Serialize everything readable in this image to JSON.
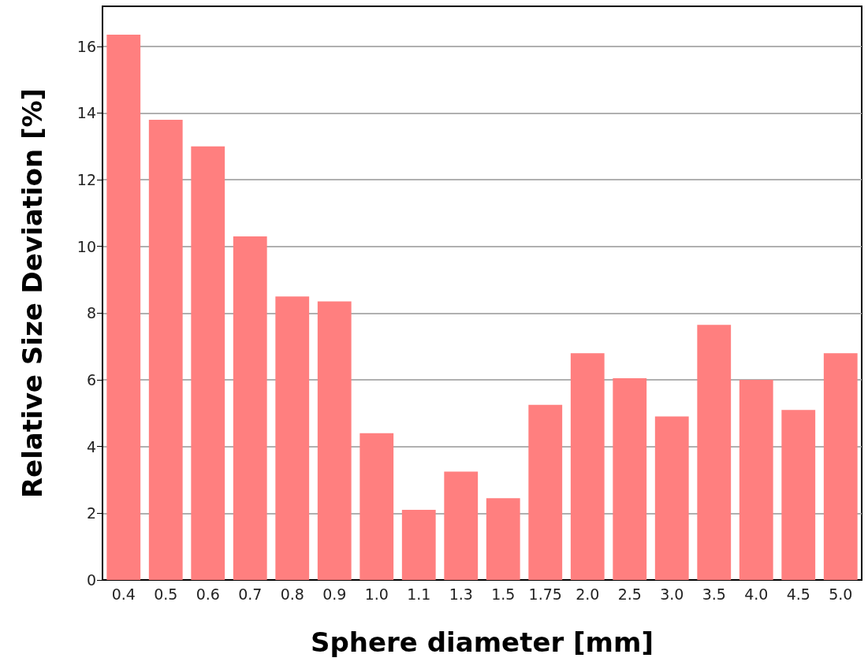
{
  "chart_data": {
    "type": "bar",
    "xlabel": "Sphere diameter [mm]",
    "ylabel": "Relative Size Deviation [%]",
    "categories": [
      "0.4",
      "0.5",
      "0.6",
      "0.7",
      "0.8",
      "0.9",
      "1.0",
      "1.1",
      "1.3",
      "1.5",
      "1.75",
      "2.0",
      "2.5",
      "3.0",
      "3.5",
      "4.0",
      "4.5",
      "5.0"
    ],
    "values": [
      16.35,
      13.8,
      13.0,
      10.3,
      8.5,
      8.35,
      4.4,
      2.1,
      3.25,
      2.45,
      5.25,
      6.8,
      6.05,
      4.9,
      7.65,
      6.0,
      5.1,
      6.8
    ],
    "color": "#ff7f7f",
    "ylim": [
      0,
      17.2
    ],
    "yticks": [
      0,
      2,
      4,
      6,
      8,
      10,
      12,
      14,
      16
    ],
    "grid": "y"
  }
}
